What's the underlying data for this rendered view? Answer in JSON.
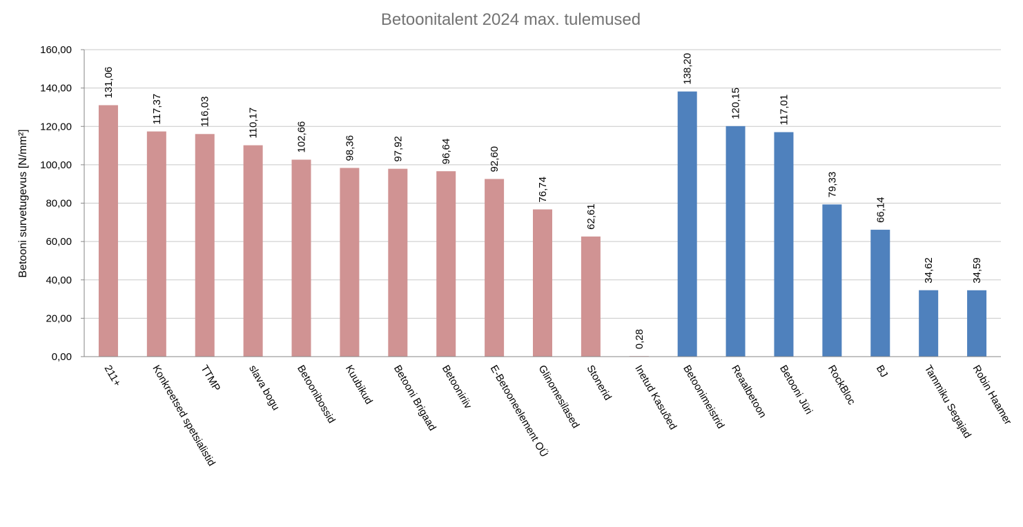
{
  "chart_data": {
    "type": "bar",
    "title": "Betoonitalent 2024 max. tulemused",
    "xlabel": "",
    "ylabel": "Betooni survetugevus [N/mm²]",
    "ylim": [
      0,
      160
    ],
    "yticks": [
      "0,00",
      "20,00",
      "40,00",
      "60,00",
      "80,00",
      "100,00",
      "120,00",
      "140,00",
      "160,00"
    ],
    "grid": true,
    "colors": {
      "group_a": "#d09393",
      "group_b": "#4f81bd"
    },
    "categories": [
      "211+",
      "Konkreetsed spetsialistid",
      "TTMP",
      "slava bogu",
      "Betoonibossid",
      "Kuubikud",
      "Betooni Brigaad",
      "Betooniriiv",
      "E-Betooneelement OÜ",
      "Glinomesilased",
      "Stonerid",
      "Inetud Kasuõed",
      "Betoonimeistrid",
      "Reaalbetoon",
      "Betooni Jüri",
      "RockBloc",
      "BJ",
      "Tammiku Segajad",
      "Robin Haamer"
    ],
    "values": [
      131.06,
      117.37,
      116.03,
      110.17,
      102.66,
      98.36,
      97.92,
      96.64,
      92.6,
      76.74,
      62.61,
      0.28,
      138.2,
      120.15,
      117.01,
      79.33,
      66.14,
      34.62,
      34.59
    ],
    "value_labels": [
      "131,06",
      "117,37",
      "116,03",
      "110,17",
      "102,66",
      "98,36",
      "97,92",
      "96,64",
      "92,60",
      "76,74",
      "62,61",
      "0,28",
      "138,20",
      "120,15",
      "117,01",
      "79,33",
      "66,14",
      "34,62",
      "34,59"
    ],
    "bar_groups": [
      "a",
      "a",
      "a",
      "a",
      "a",
      "a",
      "a",
      "a",
      "a",
      "a",
      "a",
      "a",
      "b",
      "b",
      "b",
      "b",
      "b",
      "b",
      "b"
    ]
  }
}
